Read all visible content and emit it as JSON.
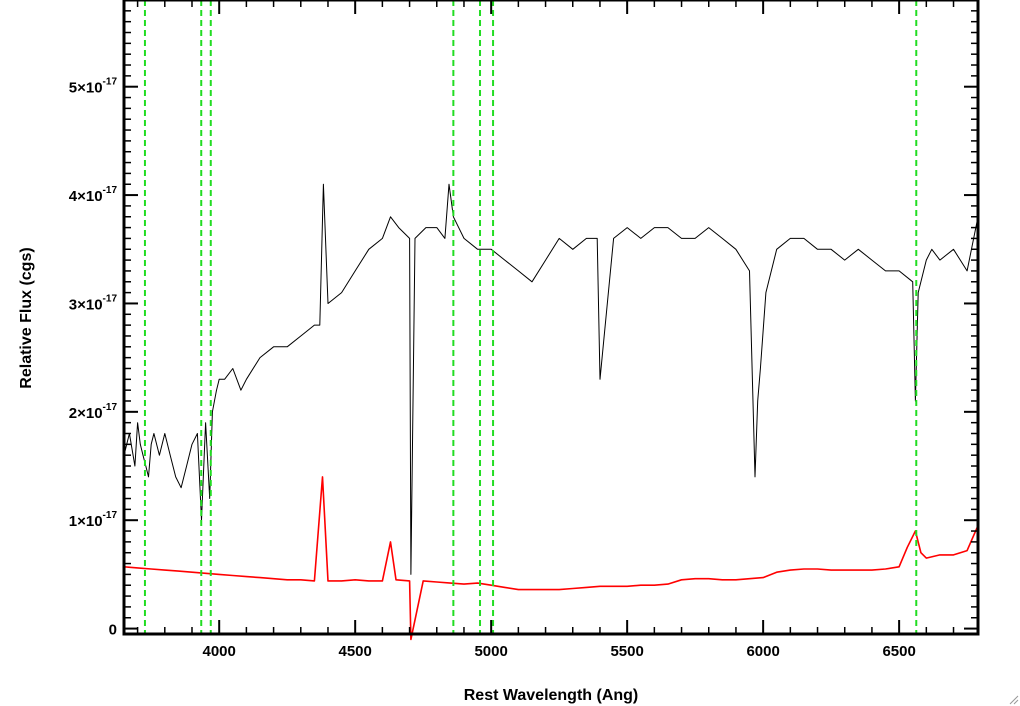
{
  "chart_data": {
    "type": "line",
    "xlabel": "Rest Wavelength (Ang)",
    "ylabel": "Relative Flux (cgs)",
    "xlim": [
      3650,
      6790
    ],
    "ylim": [
      -5e-19,
      5.8e-17
    ],
    "x_ticks": [
      4000,
      4500,
      5000,
      5500,
      6000,
      6500
    ],
    "y_ticks": [
      {
        "mantissa": "0",
        "exp": "",
        "value": 0
      },
      {
        "mantissa": "1×10",
        "exp": "-17",
        "value": 1e-17
      },
      {
        "mantissa": "2×10",
        "exp": "-17",
        "value": 2e-17
      },
      {
        "mantissa": "3×10",
        "exp": "-17",
        "value": 3e-17
      },
      {
        "mantissa": "4×10",
        "exp": "-17",
        "value": 4e-17
      },
      {
        "mantissa": "5×10",
        "exp": "-17",
        "value": 5e-17
      }
    ],
    "grid": false,
    "reference_lines": {
      "color": "#22dd22",
      "style": "dashed",
      "x": [
        3727,
        3934,
        3969,
        4861,
        4959,
        5007,
        6563
      ]
    },
    "series": [
      {
        "color": "#000000",
        "x": [
          3650,
          3670,
          3690,
          3700,
          3710,
          3720,
          3730,
          3740,
          3750,
          3760,
          3780,
          3800,
          3820,
          3840,
          3860,
          3880,
          3900,
          3920,
          3935,
          3950,
          3965,
          3975,
          3990,
          4000,
          4020,
          4050,
          4080,
          4100,
          4150,
          4200,
          4250,
          4300,
          4350,
          4370,
          4383,
          4400,
          4450,
          4500,
          4550,
          4600,
          4630,
          4660,
          4700,
          4705,
          4720,
          4760,
          4800,
          4830,
          4845,
          4861,
          4900,
          4950,
          5000,
          5050,
          5100,
          5150,
          5200,
          5250,
          5300,
          5350,
          5390,
          5400,
          5450,
          5500,
          5550,
          5600,
          5650,
          5700,
          5750,
          5800,
          5850,
          5900,
          5950,
          5970,
          5980,
          5990,
          6010,
          6050,
          6100,
          6150,
          6200,
          6250,
          6300,
          6350,
          6400,
          6450,
          6500,
          6550,
          6560,
          6570,
          6600,
          6620,
          6650,
          6700,
          6750,
          6790
        ],
        "y": [
          1.6e-17,
          1.8e-17,
          1.5e-17,
          1.9e-17,
          1.7e-17,
          1.6e-17,
          1.5e-17,
          1.4e-17,
          1.7e-17,
          1.8e-17,
          1.6e-17,
          1.8e-17,
          1.6e-17,
          1.4e-17,
          1.3e-17,
          1.5e-17,
          1.7e-17,
          1.8e-17,
          1e-17,
          1.9e-17,
          1.2e-17,
          2e-17,
          2.2e-17,
          2.3e-17,
          2.3e-17,
          2.4e-17,
          2.2e-17,
          2.3e-17,
          2.5e-17,
          2.6e-17,
          2.6e-17,
          2.7e-17,
          2.8e-17,
          2.8e-17,
          4.1e-17,
          3e-17,
          3.1e-17,
          3.3e-17,
          3.5e-17,
          3.6e-17,
          3.8e-17,
          3.7e-17,
          3.6e-17,
          5e-18,
          3.6e-17,
          3.7e-17,
          3.7e-17,
          3.6e-17,
          4.1e-17,
          3.8e-17,
          3.6e-17,
          3.5e-17,
          3.5e-17,
          3.4e-17,
          3.3e-17,
          3.2e-17,
          3.4e-17,
          3.6e-17,
          3.5e-17,
          3.6e-17,
          3.6e-17,
          2.3e-17,
          3.6e-17,
          3.7e-17,
          3.6e-17,
          3.7e-17,
          3.7e-17,
          3.6e-17,
          3.6e-17,
          3.7e-17,
          3.6e-17,
          3.5e-17,
          3.3e-17,
          1.4e-17,
          2.1e-17,
          2.4e-17,
          3.1e-17,
          3.5e-17,
          3.6e-17,
          3.6e-17,
          3.5e-17,
          3.5e-17,
          3.4e-17,
          3.5e-17,
          3.4e-17,
          3.3e-17,
          3.3e-17,
          3.2e-17,
          2.1e-17,
          3.1e-17,
          3.4e-17,
          3.5e-17,
          3.4e-17,
          3.5e-17,
          3.3e-17,
          3.8e-17
        ]
      },
      {
        "color": "#ff0000",
        "x": [
          3650,
          3700,
          3750,
          3800,
          3850,
          3900,
          3950,
          4000,
          4050,
          4100,
          4150,
          4200,
          4250,
          4300,
          4350,
          4380,
          4400,
          4450,
          4500,
          4550,
          4600,
          4630,
          4650,
          4700,
          4705,
          4750,
          4800,
          4850,
          4900,
          4950,
          5000,
          5050,
          5100,
          5150,
          5200,
          5250,
          5300,
          5350,
          5400,
          5450,
          5500,
          5550,
          5600,
          5650,
          5700,
          5750,
          5800,
          5850,
          5900,
          5950,
          6000,
          6050,
          6100,
          6150,
          6200,
          6250,
          6300,
          6350,
          6400,
          6450,
          6500,
          6530,
          6560,
          6580,
          6600,
          6650,
          6700,
          6750,
          6790
        ],
        "y": [
          5.7e-18,
          5.6e-18,
          5.5e-18,
          5.4e-18,
          5.3e-18,
          5.2e-18,
          5.1e-18,
          5e-18,
          4.9e-18,
          4.8e-18,
          4.7e-18,
          4.6e-18,
          4.5e-18,
          4.5e-18,
          4.4e-18,
          1.4e-17,
          4.4e-18,
          4.4e-18,
          4.5e-18,
          4.4e-18,
          4.4e-18,
          8e-18,
          4.5e-18,
          4.4e-18,
          -1e-18,
          4.4e-18,
          4.3e-18,
          4.2e-18,
          4.1e-18,
          4.2e-18,
          4e-18,
          3.8e-18,
          3.6e-18,
          3.6e-18,
          3.6e-18,
          3.6e-18,
          3.7e-18,
          3.8e-18,
          3.9e-18,
          3.9e-18,
          3.9e-18,
          4e-18,
          4e-18,
          4.1e-18,
          4.5e-18,
          4.6e-18,
          4.6e-18,
          4.5e-18,
          4.5e-18,
          4.6e-18,
          4.7e-18,
          5.2e-18,
          5.4e-18,
          5.5e-18,
          5.5e-18,
          5.4e-18,
          5.4e-18,
          5.4e-18,
          5.4e-18,
          5.5e-18,
          5.7e-18,
          7.5e-18,
          9e-18,
          7e-18,
          6.5e-18,
          6.8e-18,
          6.8e-18,
          7.2e-18,
          9.5e-18
        ]
      }
    ]
  }
}
